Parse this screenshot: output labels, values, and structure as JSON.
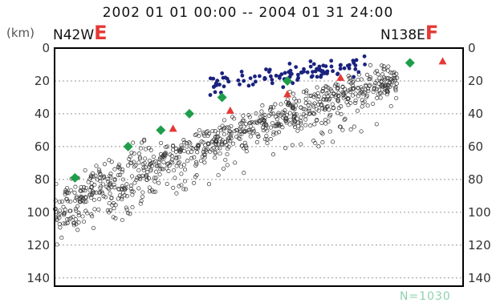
{
  "header": {
    "title": "2002 01 01 00:00 -- 2004 01 31 24:00",
    "unit_label": "(km)",
    "left_endpoint": "N42W",
    "left_marker": "E",
    "right_endpoint": "N138E",
    "right_marker": "F",
    "count_label": "N=1030"
  },
  "colors": {
    "axis": "#000000",
    "grid": "#999999",
    "hollow_points": "#333333",
    "blue_points": "#1a237e",
    "green_diamonds": "#1e9e4a",
    "red_triangles": "#e53935",
    "endpoint_markers": "#e53935",
    "count_label": "#8fd1b0"
  },
  "chart_data": {
    "type": "scatter",
    "title": "2002 01 01 00:00 -- 2004 01 31 24:00",
    "ylabel": "(km)",
    "y_axis_reversed": true,
    "ylim": [
      0,
      145
    ],
    "y_ticks": [
      0,
      20,
      40,
      60,
      80,
      100,
      120,
      140
    ],
    "grid": "horizontal dotted lines at y ticks",
    "total_count": 1030,
    "series": [
      {
        "kind": "green-diamonds",
        "values": [
          {
            "x": 0.05,
            "y": 79
          },
          {
            "x": 0.18,
            "y": 60
          },
          {
            "x": 0.26,
            "y": 50
          },
          {
            "x": 0.33,
            "y": 40
          },
          {
            "x": 0.41,
            "y": 30
          },
          {
            "x": 0.57,
            "y": 20
          },
          {
            "x": 0.87,
            "y": 9
          }
        ]
      },
      {
        "kind": "red-triangles",
        "values": [
          {
            "x": 0.29,
            "y": 49
          },
          {
            "x": 0.43,
            "y": 38
          },
          {
            "x": 0.57,
            "y": 28
          },
          {
            "x": 0.7,
            "y": 18
          },
          {
            "x": 0.95,
            "y": 8
          }
        ]
      }
    ]
  }
}
